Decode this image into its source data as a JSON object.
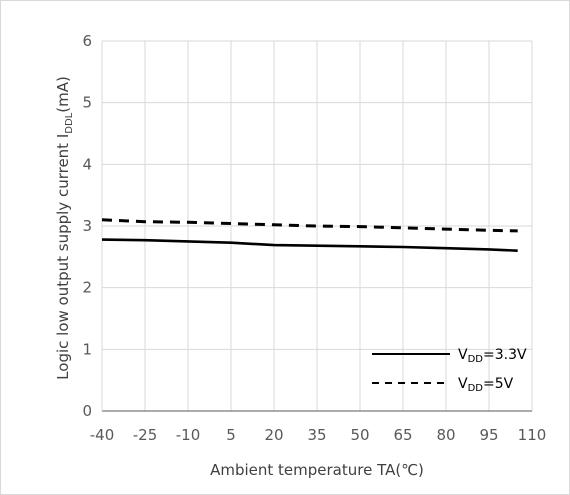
{
  "chart_data": {
    "type": "line",
    "xlabel": "Ambient temperature TA(℃)",
    "ylabel": {
      "prefix": "Logic low output supply current I",
      "sub": "DDL",
      "suffix": "(mA)"
    },
    "x_ticks": [
      -40,
      -25,
      -10,
      5,
      20,
      35,
      50,
      65,
      80,
      95,
      110
    ],
    "y_ticks": [
      0,
      1,
      2,
      3,
      4,
      5,
      6
    ],
    "xlim": [
      -40,
      110
    ],
    "ylim": [
      0,
      6
    ],
    "grid": true,
    "legend_position": "bottom-right",
    "series": [
      {
        "name": {
          "main": "V",
          "sub": "DD",
          "rest": "=3.3V"
        },
        "style": "solid",
        "x": [
          -40,
          -25,
          -10,
          5,
          20,
          35,
          50,
          65,
          80,
          95,
          105
        ],
        "y": [
          2.78,
          2.77,
          2.75,
          2.73,
          2.69,
          2.68,
          2.67,
          2.66,
          2.64,
          2.62,
          2.6
        ]
      },
      {
        "name": {
          "main": "V",
          "sub": "DD",
          "rest": "=5V"
        },
        "style": "dashed",
        "x": [
          -40,
          -25,
          -10,
          5,
          20,
          35,
          50,
          65,
          80,
          95,
          105
        ],
        "y": [
          3.1,
          3.07,
          3.06,
          3.04,
          3.02,
          3.0,
          2.99,
          2.97,
          2.95,
          2.93,
          2.92
        ]
      }
    ]
  },
  "colors": {
    "line": "#000000",
    "grid": "#d9d9d9",
    "axis": "#595959"
  }
}
